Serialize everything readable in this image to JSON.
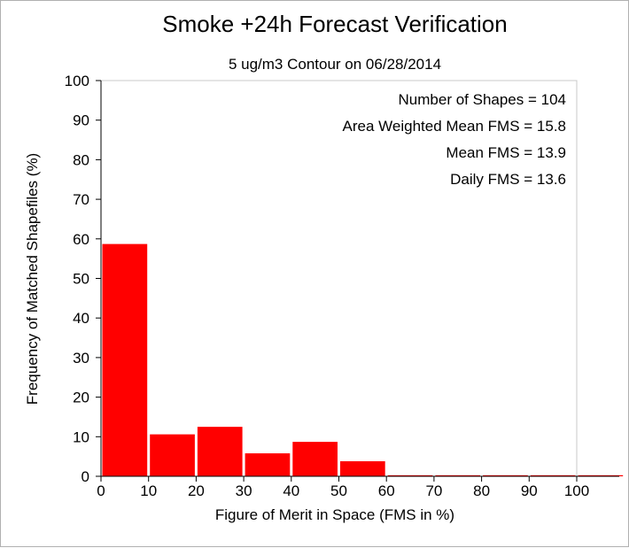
{
  "chart_data": {
    "type": "bar",
    "title": "Smoke +24h Forecast Verification",
    "subtitle": "5 ug/m3 Contour on 06/28/2014",
    "xlabel": "Figure of Merit in Space (FMS in %)",
    "ylabel": "Frequency of Matched Shapefiles (%)",
    "xlim": [
      0,
      110
    ],
    "ylim": [
      0,
      100
    ],
    "x_ticks": [
      "0",
      "10",
      "20",
      "30",
      "40",
      "50",
      "60",
      "70",
      "80",
      "90",
      "100"
    ],
    "y_ticks": [
      "0",
      "10",
      "20",
      "30",
      "40",
      "50",
      "60",
      "70",
      "80",
      "90",
      "100"
    ],
    "bins": [
      [
        0,
        10
      ],
      [
        10,
        20
      ],
      [
        20,
        30
      ],
      [
        30,
        40
      ],
      [
        40,
        50
      ],
      [
        50,
        60
      ],
      [
        60,
        70
      ],
      [
        70,
        80
      ],
      [
        80,
        90
      ],
      [
        90,
        100
      ],
      [
        100,
        110
      ]
    ],
    "values": [
      58.7,
      10.6,
      12.5,
      5.8,
      8.7,
      3.8,
      0,
      0,
      0,
      0,
      0
    ],
    "bar_color": "#ff0000",
    "grid": false,
    "annotations": [
      "Number of Shapes = 104",
      "Area Weighted Mean FMS = 15.8",
      "Mean FMS = 13.9",
      "Daily FMS = 13.6"
    ]
  }
}
